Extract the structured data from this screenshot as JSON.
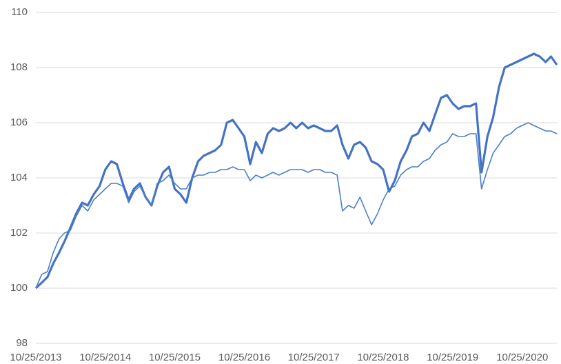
{
  "chart_data": {
    "type": "line",
    "x": [
      "10/25/2013",
      "11/25/2013",
      "12/25/2013",
      "1/25/2014",
      "2/25/2014",
      "3/25/2014",
      "4/25/2014",
      "5/25/2014",
      "6/25/2014",
      "7/25/2014",
      "8/25/2014",
      "9/25/2014",
      "10/25/2014",
      "11/25/2014",
      "12/25/2014",
      "1/25/2015",
      "2/25/2015",
      "3/25/2015",
      "4/25/2015",
      "5/25/2015",
      "6/25/2015",
      "7/25/2015",
      "8/25/2015",
      "9/25/2015",
      "10/25/2015",
      "11/25/2015",
      "12/25/2015",
      "1/25/2016",
      "2/25/2016",
      "3/25/2016",
      "4/25/2016",
      "5/25/2016",
      "6/25/2016",
      "7/25/2016",
      "8/25/2016",
      "9/25/2016",
      "10/25/2016",
      "11/25/2016",
      "12/25/2016",
      "1/25/2017",
      "2/25/2017",
      "3/25/2017",
      "4/25/2017",
      "5/25/2017",
      "6/25/2017",
      "7/25/2017",
      "8/25/2017",
      "9/25/2017",
      "10/25/2017",
      "11/25/2017",
      "12/25/2017",
      "1/25/2018",
      "2/25/2018",
      "3/25/2018",
      "4/25/2018",
      "5/25/2018",
      "6/25/2018",
      "7/25/2018",
      "8/25/2018",
      "9/25/2018",
      "10/25/2018",
      "11/25/2018",
      "12/25/2018",
      "1/25/2019",
      "2/25/2019",
      "3/25/2019",
      "4/25/2019",
      "5/25/2019",
      "6/25/2019",
      "7/25/2019",
      "8/25/2019",
      "9/25/2019",
      "10/25/2019",
      "11/25/2019",
      "12/25/2019",
      "1/25/2020",
      "2/25/2020",
      "3/25/2020",
      "4/25/2020",
      "5/25/2020",
      "6/25/2020",
      "7/25/2020",
      "8/25/2020",
      "9/25/2020",
      "10/25/2020",
      "11/25/2020",
      "12/25/2020",
      "1/25/2021",
      "2/25/2021",
      "3/25/2021",
      "4/25/2021"
    ],
    "series": [
      {
        "color": "#4472c4",
        "width": 3.2,
        "values": [
          100.0,
          100.2,
          100.4,
          100.9,
          101.3,
          101.7,
          102.2,
          102.7,
          103.1,
          103.0,
          103.4,
          103.7,
          104.3,
          104.6,
          104.5,
          103.8,
          103.2,
          103.6,
          103.8,
          103.3,
          103.0,
          103.7,
          104.2,
          104.4,
          103.6,
          103.4,
          103.1,
          104.0,
          104.6,
          104.8,
          104.9,
          105.0,
          105.2,
          106.0,
          106.1,
          105.8,
          105.5,
          104.5,
          105.3,
          104.9,
          105.6,
          105.8,
          105.7,
          105.8,
          106.0,
          105.8,
          106.0,
          105.8,
          105.9,
          105.8,
          105.7,
          105.7,
          105.9,
          105.2,
          104.7,
          105.2,
          105.3,
          105.1,
          104.6,
          104.5,
          104.3,
          103.5,
          103.9,
          104.6,
          105.0,
          105.5,
          105.6,
          106.0,
          105.7,
          106.3,
          106.9,
          107.0,
          106.7,
          106.5,
          106.6,
          106.6,
          106.7,
          104.2,
          105.5,
          106.2,
          107.3,
          108.0,
          108.1,
          108.2,
          108.3,
          108.4,
          108.5,
          108.4,
          108.2,
          108.4,
          108.1
        ]
      },
      {
        "color": "#4a7fcb",
        "width": 1.6,
        "values": [
          100.0,
          100.5,
          100.6,
          101.3,
          101.8,
          102.0,
          102.1,
          102.6,
          103.0,
          102.8,
          103.2,
          103.4,
          103.6,
          103.8,
          103.8,
          103.7,
          103.1,
          103.5,
          103.7,
          103.3,
          103.0,
          103.8,
          103.9,
          104.1,
          103.8,
          103.6,
          103.6,
          104.0,
          104.1,
          104.1,
          104.2,
          104.2,
          104.3,
          104.3,
          104.4,
          104.3,
          104.3,
          103.9,
          104.1,
          104.0,
          104.1,
          104.2,
          104.1,
          104.2,
          104.3,
          104.3,
          104.3,
          104.2,
          104.3,
          104.3,
          104.2,
          104.2,
          104.1,
          102.8,
          103.0,
          102.9,
          103.3,
          102.8,
          102.3,
          102.7,
          103.2,
          103.6,
          103.7,
          104.1,
          104.3,
          104.4,
          104.4,
          104.6,
          104.7,
          105.0,
          105.2,
          105.3,
          105.6,
          105.5,
          105.5,
          105.6,
          105.6,
          103.6,
          104.3,
          104.9,
          105.2,
          105.5,
          105.6,
          105.8,
          105.9,
          106.0,
          105.9,
          105.8,
          105.7,
          105.7,
          105.6
        ]
      }
    ],
    "xlim": [
      "10/25/2013",
      "4/25/2021"
    ],
    "xticks": [
      "10/25/2013",
      "10/25/2014",
      "10/25/2015",
      "10/25/2016",
      "10/25/2017",
      "10/25/2018",
      "10/25/2019",
      "10/25/2020"
    ],
    "ylim": [
      98,
      110
    ],
    "yticks": [
      98,
      100,
      102,
      104,
      106,
      108,
      110
    ],
    "grid": true
  }
}
